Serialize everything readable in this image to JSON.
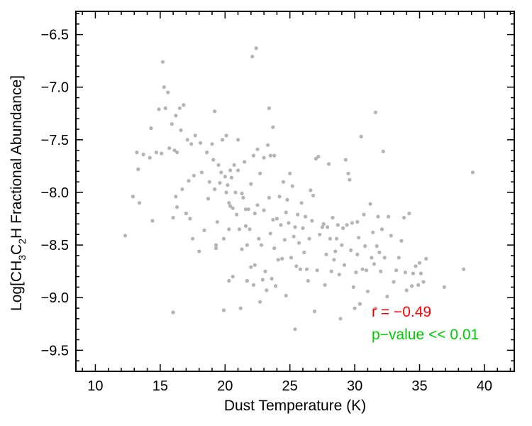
{
  "chart_data": {
    "type": "scatter",
    "xlabel": "Dust Temperature (K)",
    "ylabel_parts": {
      "prefix": "Log[CH",
      "sub1": "3",
      "mid": "C",
      "sub2": "2",
      "suffix": "H Fractional Abundance]"
    },
    "xlim": [
      8.5,
      42.3
    ],
    "ylim": [
      -9.7,
      -6.28
    ],
    "xticks": [
      10,
      15,
      20,
      25,
      30,
      35,
      40
    ],
    "yticks": [
      -6.5,
      -7.0,
      -7.5,
      -8.0,
      -8.5,
      -9.0,
      -9.5
    ],
    "ytick_labels": [
      "−6.5",
      "−7.0",
      "−7.5",
      "−8.0",
      "−8.5",
      "−9.0",
      "−9.5"
    ],
    "point_color": "#b4b4b4",
    "annotations": [
      {
        "text": "r = −0.49",
        "color": "#ff0000"
      },
      {
        "text": "p−value << 0.01",
        "color": "#00cc00"
      }
    ],
    "points": [
      [
        12.3,
        -8.41
      ],
      [
        12.9,
        -8.04
      ],
      [
        13.2,
        -7.62
      ],
      [
        13.3,
        -7.78
      ],
      [
        13.4,
        -8.1
      ],
      [
        13.7,
        -7.64
      ],
      [
        14.2,
        -7.67
      ],
      [
        14.3,
        -7.39
      ],
      [
        14.4,
        -8.27
      ],
      [
        14.7,
        -7.62
      ],
      [
        14.9,
        -7.21
      ],
      [
        15.1,
        -7.63
      ],
      [
        15.2,
        -6.76
      ],
      [
        15.3,
        -7.0
      ],
      [
        15.4,
        -7.2
      ],
      [
        15.6,
        -7.05
      ],
      [
        15.7,
        -7.58
      ],
      [
        15.9,
        -7.35
      ],
      [
        16.0,
        -8.24
      ],
      [
        16.0,
        -9.14
      ],
      [
        16.1,
        -7.6
      ],
      [
        16.2,
        -7.27
      ],
      [
        16.2,
        -8.04
      ],
      [
        16.3,
        -8.14
      ],
      [
        16.3,
        -7.62
      ],
      [
        16.5,
        -7.2
      ],
      [
        16.6,
        -7.41
      ],
      [
        16.7,
        -7.97
      ],
      [
        16.8,
        -7.17
      ],
      [
        17.0,
        -8.2
      ],
      [
        17.1,
        -7.5
      ],
      [
        17.2,
        -7.89
      ],
      [
        17.3,
        -8.25
      ],
      [
        17.4,
        -7.54
      ],
      [
        17.5,
        -8.44
      ],
      [
        17.6,
        -7.84
      ],
      [
        17.7,
        -7.46
      ],
      [
        18.0,
        -8.56
      ],
      [
        18.1,
        -7.53
      ],
      [
        18.2,
        -7.81
      ],
      [
        18.4,
        -8.36
      ],
      [
        18.6,
        -7.62
      ],
      [
        18.7,
        -8.06
      ],
      [
        18.8,
        -7.9
      ],
      [
        19.0,
        -7.54
      ],
      [
        19.1,
        -7.69
      ],
      [
        19.2,
        -7.23
      ],
      [
        19.2,
        -7.97
      ],
      [
        19.3,
        -8.5
      ],
      [
        19.3,
        -8.53
      ],
      [
        19.4,
        -8.28
      ],
      [
        19.5,
        -7.74
      ],
      [
        19.6,
        -7.91
      ],
      [
        19.7,
        -7.81
      ],
      [
        19.8,
        -7.5
      ],
      [
        19.9,
        -8.44
      ],
      [
        19.9,
        -9.12
      ],
      [
        20.0,
        -7.85
      ],
      [
        20.1,
        -7.46
      ],
      [
        20.1,
        -8.0
      ],
      [
        20.2,
        -7.93
      ],
      [
        20.3,
        -8.1
      ],
      [
        20.3,
        -8.35
      ],
      [
        20.3,
        -8.84
      ],
      [
        20.4,
        -7.79
      ],
      [
        20.4,
        -8.13
      ],
      [
        20.5,
        -7.86
      ],
      [
        20.6,
        -8.15
      ],
      [
        20.6,
        -8.8
      ],
      [
        20.7,
        -7.74
      ],
      [
        20.8,
        -8.0
      ],
      [
        20.9,
        -8.21
      ],
      [
        21.0,
        -7.5
      ],
      [
        21.0,
        -7.79
      ],
      [
        21.1,
        -8.35
      ],
      [
        21.2,
        -9.1
      ],
      [
        21.3,
        -8.01
      ],
      [
        21.3,
        -8.54
      ],
      [
        21.4,
        -8.05
      ],
      [
        21.5,
        -7.71
      ],
      [
        21.6,
        -8.16
      ],
      [
        21.6,
        -8.32
      ],
      [
        21.7,
        -8.5
      ],
      [
        21.7,
        -8.84
      ],
      [
        21.8,
        -8.16
      ],
      [
        21.9,
        -8.35
      ],
      [
        22.0,
        -7.92
      ],
      [
        22.0,
        -8.71
      ],
      [
        22.1,
        -6.71
      ],
      [
        22.2,
        -7.65
      ],
      [
        22.2,
        -8.88
      ],
      [
        22.3,
        -8.2
      ],
      [
        22.3,
        -8.69
      ],
      [
        22.4,
        -6.63
      ],
      [
        22.5,
        -7.59
      ],
      [
        22.5,
        -8.12
      ],
      [
        22.6,
        -8.44
      ],
      [
        22.7,
        -7.82
      ],
      [
        22.7,
        -9.04
      ],
      [
        22.8,
        -8.5
      ],
      [
        22.9,
        -8.83
      ],
      [
        23.0,
        -7.67
      ],
      [
        23.0,
        -8.17
      ],
      [
        23.1,
        -8.75
      ],
      [
        23.2,
        -8.93
      ],
      [
        23.3,
        -7.55
      ],
      [
        23.4,
        -7.2
      ],
      [
        23.4,
        -8.05
      ],
      [
        23.5,
        -7.65
      ],
      [
        23.5,
        -8.39
      ],
      [
        23.6,
        -8.82
      ],
      [
        23.7,
        -7.38
      ],
      [
        23.7,
        -8.26
      ],
      [
        23.8,
        -7.65
      ],
      [
        23.8,
        -8.53
      ],
      [
        23.9,
        -8.89
      ],
      [
        24.0,
        -8.25
      ],
      [
        24.1,
        -8.64
      ],
      [
        24.2,
        -8.04
      ],
      [
        24.3,
        -8.31
      ],
      [
        24.4,
        -8.63
      ],
      [
        24.5,
        -7.9
      ],
      [
        24.6,
        -8.45
      ],
      [
        24.7,
        -8.19
      ],
      [
        24.7,
        -8.98
      ],
      [
        24.8,
        -8.07
      ],
      [
        24.9,
        -8.29
      ],
      [
        25.0,
        -7.82
      ],
      [
        25.1,
        -8.62
      ],
      [
        25.2,
        -7.94
      ],
      [
        25.3,
        -8.42
      ],
      [
        25.4,
        -8.33
      ],
      [
        25.4,
        -9.3
      ],
      [
        25.5,
        -8.7
      ],
      [
        25.6,
        -8.21
      ],
      [
        25.7,
        -8.48
      ],
      [
        25.8,
        -8.73
      ],
      [
        25.9,
        -8.1
      ],
      [
        26.0,
        -8.34
      ],
      [
        26.1,
        -8.57
      ],
      [
        26.2,
        -8.23
      ],
      [
        26.3,
        -8.73
      ],
      [
        26.4,
        -8.84
      ],
      [
        26.5,
        -8.44
      ],
      [
        26.6,
        -7.98
      ],
      [
        26.7,
        -8.27
      ],
      [
        26.8,
        -8.03
      ],
      [
        26.9,
        -9.13
      ],
      [
        27.0,
        -7.68
      ],
      [
        27.1,
        -8.74
      ],
      [
        27.2,
        -7.66
      ],
      [
        27.3,
        -8.4
      ],
      [
        27.5,
        -8.33
      ],
      [
        27.6,
        -8.3
      ],
      [
        27.7,
        -8.88
      ],
      [
        27.8,
        -8.59
      ],
      [
        27.9,
        -8.33
      ],
      [
        28.0,
        -7.73
      ],
      [
        28.1,
        -8.44
      ],
      [
        28.2,
        -8.75
      ],
      [
        28.3,
        -8.24
      ],
      [
        28.4,
        -8.64
      ],
      [
        28.5,
        -8.56
      ],
      [
        28.6,
        -8.44
      ],
      [
        28.7,
        -8.31
      ],
      [
        28.8,
        -8.78
      ],
      [
        28.9,
        -9.2
      ],
      [
        29.0,
        -8.5
      ],
      [
        29.1,
        -8.34
      ],
      [
        29.2,
        -8.69
      ],
      [
        29.3,
        -7.69
      ],
      [
        29.4,
        -8.31
      ],
      [
        29.5,
        -7.82
      ],
      [
        29.6,
        -7.88
      ],
      [
        29.7,
        -8.55
      ],
      [
        29.8,
        -8.29
      ],
      [
        29.9,
        -8.9
      ],
      [
        30.0,
        -9.1
      ],
      [
        30.1,
        -8.76
      ],
      [
        30.2,
        -8.59
      ],
      [
        30.3,
        -8.43
      ],
      [
        30.4,
        -9.06
      ],
      [
        30.5,
        -7.47
      ],
      [
        30.6,
        -8.73
      ],
      [
        30.7,
        -8.21
      ],
      [
        30.8,
        -8.51
      ],
      [
        30.9,
        -8.74
      ],
      [
        31.0,
        -8.94
      ],
      [
        31.2,
        -8.11
      ],
      [
        31.3,
        -8.62
      ],
      [
        31.4,
        -8.38
      ],
      [
        31.5,
        -8.68
      ],
      [
        31.6,
        -9.1
      ],
      [
        31.7,
        -8.51
      ],
      [
        31.8,
        -8.23
      ],
      [
        31.9,
        -8.57
      ],
      [
        32.0,
        -8.75
      ],
      [
        32.1,
        -8.35
      ],
      [
        32.2,
        -7.61
      ],
      [
        32.3,
        -8.62
      ],
      [
        32.5,
        -8.99
      ],
      [
        32.6,
        -8.23
      ],
      [
        32.8,
        -8.41
      ],
      [
        33.0,
        -8.85
      ],
      [
        33.2,
        -8.74
      ],
      [
        33.4,
        -8.62
      ],
      [
        33.6,
        -8.46
      ],
      [
        33.8,
        -8.24
      ],
      [
        33.9,
        -8.76
      ],
      [
        34.0,
        -8.93
      ],
      [
        34.2,
        -8.2
      ],
      [
        34.4,
        -8.89
      ],
      [
        34.5,
        -8.77
      ],
      [
        34.7,
        -8.7
      ],
      [
        34.9,
        -8.88
      ],
      [
        35.0,
        -8.67
      ],
      [
        35.1,
        -8.77
      ],
      [
        35.3,
        -8.85
      ],
      [
        35.5,
        -8.63
      ],
      [
        36.9,
        -8.9
      ],
      [
        38.4,
        -8.73
      ],
      [
        39.1,
        -7.81
      ],
      [
        31.6,
        -7.24
      ],
      [
        30.2,
        -8.28
      ]
    ]
  }
}
